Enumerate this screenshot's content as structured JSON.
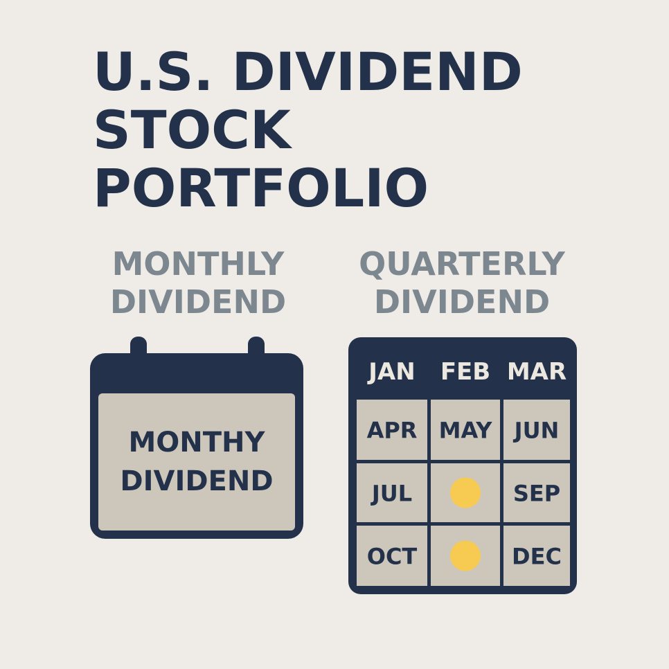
{
  "title_lines": [
    "U.S. DIVIDEND",
    "STOCK",
    "PORTFOLIO"
  ],
  "monthly": {
    "heading_lines": [
      "MONTHLY",
      "DIVIDEND"
    ],
    "calendar_lines": [
      "MONTHY",
      "DIVIDEND"
    ]
  },
  "quarterly": {
    "heading_lines": [
      "QUARTERLY",
      "DIVIDEND"
    ],
    "header_months": [
      "JAN",
      "FEB",
      "MAR"
    ],
    "rows": [
      [
        "APR",
        "MAY",
        "JUN"
      ],
      [
        "JUL",
        null,
        "SEP"
      ],
      [
        "OCT",
        null,
        "DEC"
      ]
    ]
  }
}
